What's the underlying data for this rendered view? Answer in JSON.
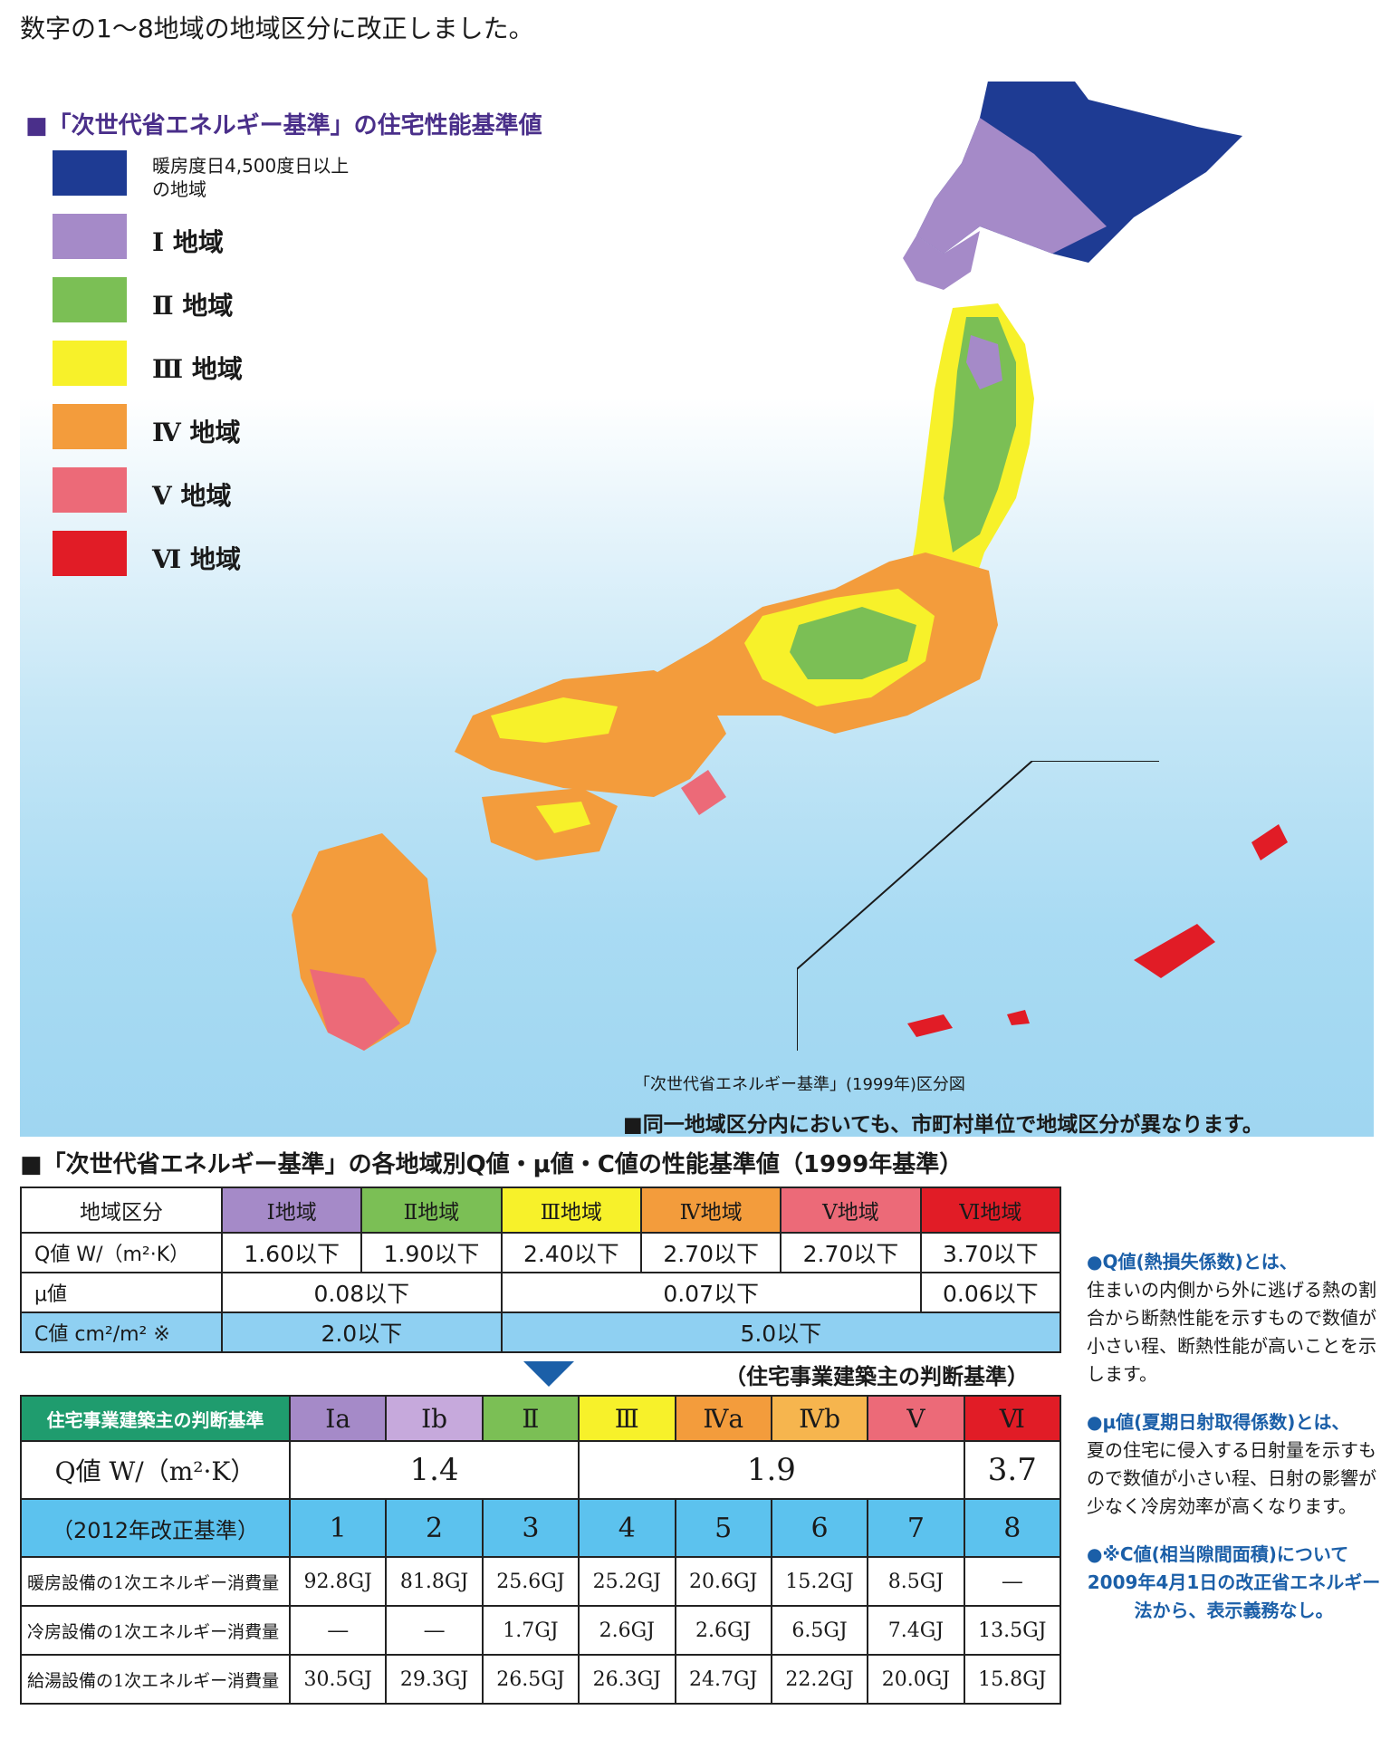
{
  "header": {
    "title": "数字の1～8地域の地域区分に改正しました。"
  },
  "legend": {
    "title": "■「次世代省エネルギー基準」の住宅性能基準値",
    "items": [
      {
        "label": "暖房度日4,500度日以上の地域",
        "color": "#1e3b93"
      },
      {
        "label": "Ⅰ 地域",
        "color": "#a58ac8"
      },
      {
        "label": "Ⅱ 地域",
        "color": "#7bbf55"
      },
      {
        "label": "Ⅲ 地域",
        "color": "#f7f12a"
      },
      {
        "label": "Ⅳ 地域",
        "color": "#f39c3c"
      },
      {
        "label": "Ⅴ 地域",
        "color": "#ec6a78"
      },
      {
        "label": "Ⅵ 地域",
        "color": "#e11c26"
      }
    ]
  },
  "map": {
    "caption": "「次世代省エネルギー基準」(1999年)区分図",
    "note": "■同一地域区分内においても、市町村単位で地域区分が異なります。"
  },
  "table1": {
    "title": "■「次世代省エネルギー基準」の各地域別Q値・μ値・C値の性能基準値（1999年基準）",
    "header": [
      "地域区分",
      "Ⅰ地域",
      "Ⅱ地域",
      "Ⅲ地域",
      "Ⅳ地域",
      "Ⅴ地域",
      "Ⅵ地域"
    ],
    "q_label": "Q値 W/（m²·K）",
    "q_values": [
      "1.60以下",
      "1.90以下",
      "2.40以下",
      "2.70以下",
      "2.70以下",
      "3.70以下"
    ],
    "mu_label": "μ値",
    "mu_values": [
      "0.08以下",
      "0.07以下",
      "0.06以下"
    ],
    "c_label": "C値 cm²/m² ※",
    "c_values": [
      "2.0以下",
      "5.0以下"
    ]
  },
  "arrow_note": "（住宅事業建築主の判断基準）",
  "table2": {
    "header_label": "住宅事業建築主の判断基準",
    "zones": [
      "Ⅰa",
      "Ⅰb",
      "Ⅱ",
      "Ⅲ",
      "Ⅳa",
      "Ⅳb",
      "Ⅴ",
      "Ⅵ"
    ],
    "q_label": "Q値 W/（m²·K）",
    "q_values": [
      "1.4",
      "1.9",
      "3.7"
    ],
    "rev_label": "（2012年改正基準）",
    "numbers": [
      "1",
      "2",
      "3",
      "4",
      "5",
      "6",
      "7",
      "8"
    ],
    "heating_label": "暖房設備の1次エネルギー消費量",
    "heating": [
      "92.8GJ",
      "81.8GJ",
      "25.6GJ",
      "25.2GJ",
      "20.6GJ",
      "15.2GJ",
      "8.5GJ",
      "―"
    ],
    "cooling_label": "冷房設備の1次エネルギー消費量",
    "cooling": [
      "―",
      "―",
      "1.7GJ",
      "2.6GJ",
      "2.6GJ",
      "6.5GJ",
      "7.4GJ",
      "13.5GJ"
    ],
    "water_label": "給湯設備の1次エネルギー消費量",
    "water": [
      "30.5GJ",
      "29.3GJ",
      "26.5GJ",
      "26.3GJ",
      "24.7GJ",
      "22.2GJ",
      "20.0GJ",
      "15.8GJ"
    ]
  },
  "notes": {
    "q_head": "●Q値(熱損失係数)とは、",
    "q_body": "住まいの内側から外に逃げる熱の割合から断熱性能を示すもので数値が小さい程、断熱性能が高いことを示します。",
    "mu_head": "●μ値(夏期日射取得係数)とは、",
    "mu_body": "夏の住宅に侵入する日射量を示すもので数値が小さい程、日射の影響が少なく冷房効率が高くなります。",
    "c_head": "●※C値(相当隙間面積)について",
    "c_body": "2009年4月1日の改正省エネルギー法から、表示義務なし。"
  }
}
